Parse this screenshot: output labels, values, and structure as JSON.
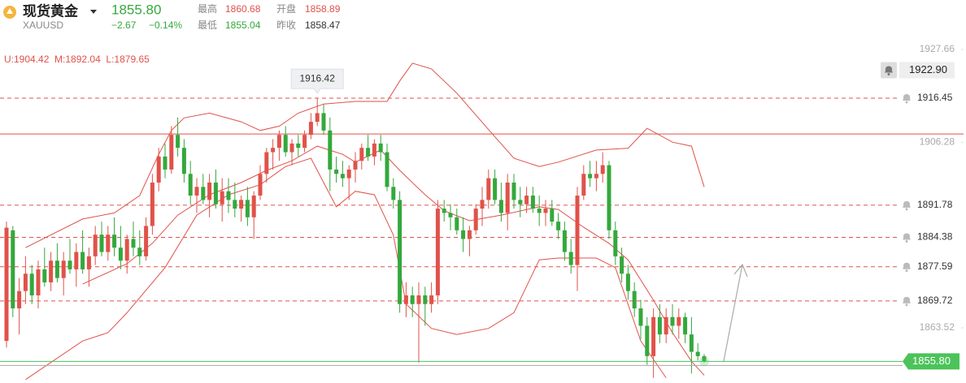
{
  "header": {
    "name": "现货黄金",
    "symbol": "XAUUSD",
    "price": "1855.80",
    "change": "−2.67",
    "change_pct": "−0.14%",
    "stats": [
      {
        "label": "最高",
        "value": "1860.68"
      },
      {
        "label": "开盘",
        "value": "1858.89"
      },
      {
        "label": "最低",
        "value": "1855.04"
      },
      {
        "label": "昨收",
        "value": "1858.47"
      }
    ],
    "bands_label": "U:1904.42  M:1892.04  L:1879.65"
  },
  "chart_data": {
    "type": "candlestick",
    "ylim": [
      1850.81,
      1939.07
    ],
    "yticks": [
      1927.66,
      1906.28,
      1863.52
    ],
    "up_color": "#e0524a",
    "down_color": "#34a83c",
    "band_color": "#e0524a",
    "current_color": "#4cc35a",
    "ohlc": [
      [
        1860.5,
        1888,
        1859,
        1886.6
      ],
      [
        1886,
        1887,
        1866,
        1868
      ],
      [
        1868,
        1875,
        1862,
        1872
      ],
      [
        1872,
        1880,
        1869,
        1876
      ],
      [
        1876,
        1878,
        1869,
        1871
      ],
      [
        1871,
        1879,
        1868,
        1877
      ],
      [
        1877,
        1882,
        1873,
        1874
      ],
      [
        1874,
        1881,
        1872,
        1879
      ],
      [
        1879,
        1883,
        1874,
        1875
      ],
      [
        1875,
        1881,
        1871,
        1879
      ],
      [
        1879,
        1884,
        1876,
        1877
      ],
      [
        1877,
        1883,
        1873,
        1881
      ],
      [
        1881,
        1886,
        1876,
        1877
      ],
      [
        1877,
        1882,
        1873,
        1880
      ],
      [
        1880,
        1887,
        1878,
        1885
      ],
      [
        1885,
        1888,
        1880,
        1881
      ],
      [
        1881,
        1887,
        1879,
        1885
      ],
      [
        1885,
        1889,
        1880,
        1882
      ],
      [
        1882,
        1887,
        1877,
        1879
      ],
      [
        1879,
        1885,
        1876,
        1884
      ],
      [
        1884,
        1888,
        1880,
        1882
      ],
      [
        1882,
        1886,
        1878,
        1880
      ],
      [
        1880,
        1889,
        1879,
        1887
      ],
      [
        1887,
        1899,
        1885,
        1897
      ],
      [
        1897,
        1905,
        1895,
        1903
      ],
      [
        1903,
        1906,
        1898,
        1900
      ],
      [
        1900,
        1910,
        1899,
        1908
      ],
      [
        1908,
        1912,
        1903,
        1905
      ],
      [
        1905,
        1907,
        1897,
        1899
      ],
      [
        1899,
        1902,
        1892,
        1894
      ],
      [
        1894,
        1898,
        1890,
        1896
      ],
      [
        1896,
        1899,
        1892,
        1893
      ],
      [
        1893,
        1899,
        1889,
        1897
      ],
      [
        1897,
        1900,
        1891,
        1892
      ],
      [
        1892,
        1898,
        1888,
        1895
      ],
      [
        1895,
        1898,
        1890,
        1893
      ],
      [
        1893,
        1897,
        1889,
        1891
      ],
      [
        1891,
        1894,
        1888,
        1893
      ],
      [
        1893,
        1896,
        1887,
        1889
      ],
      [
        1889,
        1895,
        1884,
        1894
      ],
      [
        1894,
        1901,
        1893,
        1899
      ],
      [
        1899,
        1905,
        1897,
        1904
      ],
      [
        1904,
        1907,
        1900,
        1905
      ],
      [
        1905,
        1909,
        1902,
        1908
      ],
      [
        1908,
        1910,
        1903,
        1904
      ],
      [
        1904,
        1907,
        1901,
        1906
      ],
      [
        1906,
        1908,
        1903,
        1905
      ],
      [
        1905,
        1909,
        1904,
        1908
      ],
      [
        1908,
        1913,
        1907,
        1911
      ],
      [
        1911,
        1916.42,
        1910,
        1913
      ],
      [
        1913,
        1915,
        1908,
        1909
      ],
      [
        1909,
        1912,
        1895,
        1900
      ],
      [
        1900,
        1903,
        1897,
        1899
      ],
      [
        1899,
        1902,
        1896,
        1898
      ],
      [
        1898,
        1901,
        1893,
        1900
      ],
      [
        1900,
        1904,
        1897,
        1902
      ],
      [
        1902,
        1906,
        1900,
        1905
      ],
      [
        1905,
        1908,
        1902,
        1903
      ],
      [
        1903,
        1907,
        1901,
        1906
      ],
      [
        1906,
        1908,
        1902,
        1904
      ],
      [
        1904,
        1906,
        1895,
        1896
      ],
      [
        1896,
        1898,
        1891,
        1893
      ],
      [
        1893,
        1895,
        1867,
        1869
      ],
      [
        1869,
        1874,
        1866,
        1871
      ],
      [
        1871,
        1873,
        1866,
        1869
      ],
      [
        1869,
        1874,
        1855.5,
        1871
      ],
      [
        1871,
        1873,
        1864,
        1869
      ],
      [
        1869,
        1874,
        1867,
        1871
      ],
      [
        1871,
        1893,
        1869,
        1891
      ],
      [
        1891,
        1893,
        1888,
        1890
      ],
      [
        1890,
        1892,
        1886,
        1889
      ],
      [
        1889,
        1891,
        1885,
        1886
      ],
      [
        1886,
        1889,
        1881,
        1884
      ],
      [
        1884,
        1887,
        1880,
        1886
      ],
      [
        1886,
        1892,
        1885,
        1891
      ],
      [
        1891,
        1896,
        1887,
        1893
      ],
      [
        1893,
        1900,
        1891,
        1898
      ],
      [
        1898,
        1900,
        1892,
        1893
      ],
      [
        1893,
        1897,
        1888,
        1890
      ],
      [
        1890,
        1899,
        1886,
        1897
      ],
      [
        1897,
        1899,
        1891,
        1893
      ],
      [
        1893,
        1896,
        1889,
        1892
      ],
      [
        1892,
        1896,
        1890,
        1894
      ],
      [
        1894,
        1896,
        1890,
        1891
      ],
      [
        1891,
        1894,
        1887,
        1890
      ],
      [
        1890,
        1893,
        1887,
        1891
      ],
      [
        1891,
        1893,
        1887,
        1888
      ],
      [
        1888,
        1890,
        1884,
        1886
      ],
      [
        1886,
        1888,
        1879,
        1881
      ],
      [
        1881,
        1884,
        1876,
        1878
      ],
      [
        1878,
        1896,
        1872,
        1894
      ],
      [
        1894,
        1901,
        1893,
        1899
      ],
      [
        1899,
        1902,
        1896,
        1898
      ],
      [
        1898,
        1902,
        1895,
        1899
      ],
      [
        1899,
        1904,
        1897,
        1901
      ],
      [
        1901,
        1902,
        1884,
        1886
      ],
      [
        1886,
        1888,
        1878,
        1880
      ],
      [
        1880,
        1882,
        1874,
        1876
      ],
      [
        1876,
        1878,
        1870,
        1872
      ],
      [
        1872,
        1874,
        1866,
        1868
      ],
      [
        1868,
        1870,
        1861,
        1864
      ],
      [
        1864,
        1866,
        1855,
        1857
      ],
      [
        1857,
        1868,
        1852,
        1866
      ],
      [
        1866,
        1869,
        1860,
        1862
      ],
      [
        1862,
        1868,
        1860,
        1866
      ],
      [
        1866,
        1869,
        1862,
        1864
      ],
      [
        1864,
        1868,
        1861,
        1866
      ],
      [
        1866,
        1867,
        1860,
        1862
      ],
      [
        1862,
        1866,
        1853,
        1858
      ],
      [
        1858,
        1860,
        1856,
        1857
      ],
      [
        1857,
        1857.5,
        1855.5,
        1855.8
      ]
    ],
    "bands": {
      "upper": {
        "x": [
          3,
          12,
          17,
          21,
          24,
          26,
          28,
          32,
          37,
          40,
          43,
          46,
          50,
          55,
          60,
          62,
          64,
          67,
          71,
          76,
          80,
          84,
          87,
          93,
          98,
          101,
          105,
          108,
          110
        ],
        "values": [
          1882,
          1888.6,
          1890,
          1894,
          1903.5,
          1909,
          1911.9,
          1913,
          1911,
          1909,
          1910,
          1913,
          1915.1,
          1915.7,
          1915.7,
          1920.4,
          1924.5,
          1923.2,
          1917.6,
          1909.2,
          1902.6,
          1900.7,
          1901.7,
          1904.5,
          1904.9,
          1909.5,
          1906.3,
          1905.4,
          1896
        ]
      },
      "middle": {
        "x": [
          12,
          19,
          23,
          27,
          32,
          37,
          41,
          45,
          49,
          53,
          55,
          59,
          62,
          66,
          69,
          73,
          78,
          84,
          87,
          91,
          95,
          98,
          102,
          105,
          108,
          110
        ],
        "values": [
          1873.6,
          1878.3,
          1883,
          1889.5,
          1894.2,
          1897,
          1899.8,
          1902,
          1905.4,
          1903.5,
          1901.7,
          1904.5,
          1899.8,
          1894.2,
          1890.5,
          1888.2,
          1889.5,
          1891.4,
          1890.8,
          1886.7,
          1883,
          1879.2,
          1869.9,
          1862.4,
          1855.8,
          1852.6
        ]
      },
      "lower": {
        "x": [
          3,
          12,
          16,
          19,
          25,
          30,
          35,
          40,
          44,
          48,
          52,
          55,
          58,
          61,
          63,
          67,
          71,
          76,
          80,
          84,
          87,
          93,
          96,
          100,
          104
        ],
        "values": [
          1851.6,
          1860.5,
          1862.4,
          1867,
          1877.4,
          1889.5,
          1894.2,
          1896.5,
          1900.7,
          1902.6,
          1891.4,
          1895,
          1894.2,
          1884.9,
          1869,
          1863.4,
          1862,
          1863.4,
          1867,
          1879.2,
          1879.6,
          1879.6,
          1877.4,
          1860.5,
          1852
        ]
      }
    },
    "high_marker": 49,
    "alert_lines": [
      1916.45,
      1891.78,
      1884.38,
      1877.59,
      1869.72
    ],
    "resistance": 1908.2,
    "alert_price": {
      "value": 1922.9,
      "label": "1922.90"
    },
    "current": {
      "value": 1855.8,
      "label": "1855.80"
    }
  }
}
